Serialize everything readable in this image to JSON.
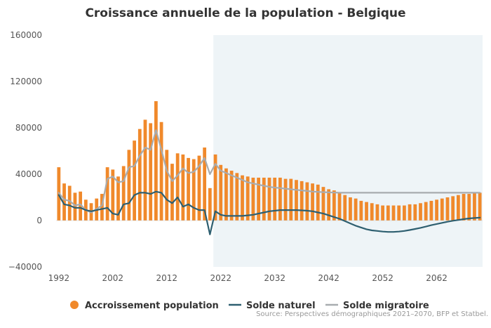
{
  "chart_data": {
    "type": "bar",
    "title": "Croissance annuelle de la population - Belgique",
    "xlabel": "",
    "ylabel": "",
    "ylim": [
      -40000,
      160000
    ],
    "yticks": [
      160000,
      120000,
      80000,
      40000,
      0,
      -40000
    ],
    "ytick_labels": [
      "160000",
      "120000",
      "80000",
      "40000",
      "0",
      "−40000"
    ],
    "xlim": [
      1992,
      2070
    ],
    "xticks": [
      1992,
      2002,
      2012,
      2022,
      2032,
      2042,
      2052,
      2062
    ],
    "xtick_labels": [
      "1992",
      "2002",
      "2012",
      "2022",
      "2032",
      "2042",
      "2052",
      "2062"
    ],
    "grid": false,
    "projection_shading_from": 2021,
    "projection_shading_color": "#eef4f7",
    "legend_position": "bottom",
    "source": "Source: Perspectives démographiques 2021–2070, BFP et Statbel.",
    "years": [
      1992,
      1993,
      1994,
      1995,
      1996,
      1997,
      1998,
      1999,
      2000,
      2001,
      2002,
      2003,
      2004,
      2005,
      2006,
      2007,
      2008,
      2009,
      2010,
      2011,
      2012,
      2013,
      2014,
      2015,
      2016,
      2017,
      2018,
      2019,
      2020,
      2021,
      2022,
      2023,
      2024,
      2025,
      2026,
      2027,
      2028,
      2029,
      2030,
      2031,
      2032,
      2033,
      2034,
      2035,
      2036,
      2037,
      2038,
      2039,
      2040,
      2041,
      2042,
      2043,
      2044,
      2045,
      2046,
      2047,
      2048,
      2049,
      2050,
      2051,
      2052,
      2053,
      2054,
      2055,
      2056,
      2057,
      2058,
      2059,
      2060,
      2061,
      2062,
      2063,
      2064,
      2065,
      2066,
      2067,
      2068,
      2069,
      2070
    ],
    "series": [
      {
        "name": "Accroissement population",
        "type": "bar",
        "color": "#f0892b",
        "values": [
          46000,
          32000,
          30000,
          24000,
          25000,
          18000,
          15000,
          19000,
          23000,
          46000,
          44000,
          38000,
          47000,
          61000,
          69000,
          79000,
          87000,
          84000,
          103000,
          85000,
          61000,
          49000,
          58000,
          57000,
          54000,
          53000,
          56000,
          63000,
          28000,
          57000,
          48000,
          45000,
          43000,
          41000,
          39000,
          38000,
          37000,
          37000,
          37000,
          37000,
          37000,
          37000,
          36000,
          36000,
          35000,
          34000,
          33000,
          32000,
          31000,
          29000,
          27000,
          26000,
          24000,
          22000,
          20000,
          19000,
          17000,
          16000,
          15000,
          14000,
          13000,
          13000,
          13000,
          13000,
          13000,
          14000,
          14000,
          15000,
          16000,
          17000,
          18000,
          19000,
          20000,
          21000,
          22000,
          23000,
          23000,
          24000,
          24000
        ]
      },
      {
        "name": "Solde naturel",
        "type": "line",
        "color": "#2e5f70",
        "values": [
          22000,
          14000,
          13000,
          11000,
          11000,
          9000,
          8000,
          9000,
          10000,
          11000,
          6000,
          5000,
          14000,
          15000,
          22000,
          24000,
          24000,
          23000,
          25000,
          24000,
          18000,
          15000,
          20000,
          12000,
          14000,
          11000,
          9000,
          9000,
          -12000,
          8000,
          5000,
          4000,
          4000,
          4000,
          4000,
          4500,
          5000,
          6000,
          7000,
          8000,
          8500,
          9000,
          9000,
          9000,
          9000,
          8800,
          8500,
          8000,
          7000,
          6000,
          4500,
          3000,
          1500,
          -500,
          -2500,
          -4500,
          -6000,
          -7500,
          -8500,
          -9000,
          -9500,
          -9800,
          -9800,
          -9500,
          -9000,
          -8200,
          -7300,
          -6300,
          -5200,
          -4000,
          -3000,
          -2000,
          -1000,
          -200,
          500,
          1200,
          1800,
          2200,
          2500
        ]
      },
      {
        "name": "Solde migratoire",
        "type": "line",
        "color": "#a8acaf",
        "values": [
          24000,
          18000,
          17000,
          13000,
          14000,
          9000,
          7000,
          10000,
          13000,
          36000,
          38000,
          33000,
          34000,
          46000,
          47000,
          56000,
          63000,
          61000,
          78000,
          61000,
          43000,
          34000,
          39000,
          45000,
          41000,
          42000,
          47000,
          54000,
          40000,
          49000,
          43000,
          41000,
          39000,
          37000,
          35000,
          33000,
          32000,
          31000,
          30000,
          29000,
          28500,
          28000,
          27500,
          27000,
          26500,
          26000,
          25500,
          25000,
          24700,
          24500,
          24300,
          24200,
          24000,
          24000,
          24000,
          24000,
          24000,
          24000,
          24000,
          24000,
          24000,
          24000,
          24000,
          24000,
          24000,
          24000,
          24000,
          24000,
          24000,
          24000,
          24000,
          24000,
          24000,
          24000,
          24000,
          24000,
          24000,
          24000,
          24000
        ]
      }
    ]
  }
}
